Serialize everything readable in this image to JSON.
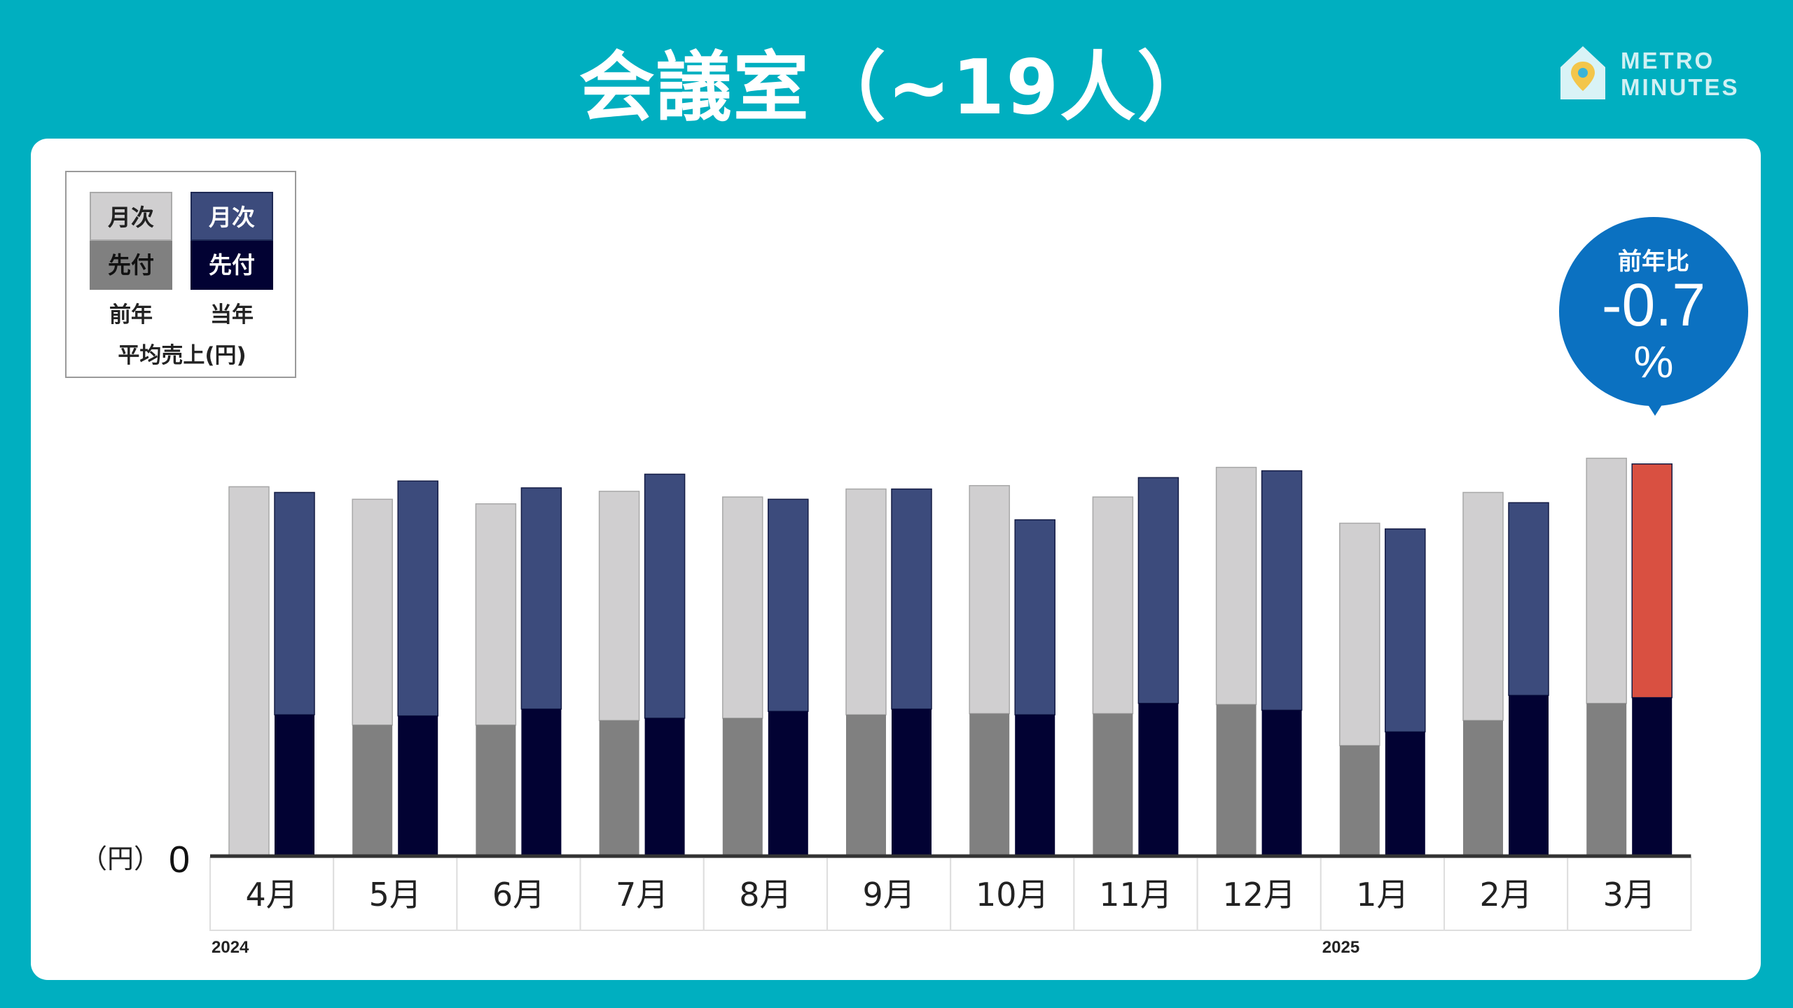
{
  "header": {
    "title": "会議室（~19人）"
  },
  "brand": {
    "line1": "METRO",
    "line2": "MINUTES"
  },
  "legend": {
    "prev_monthly": "月次",
    "prev_advance": "先付",
    "curr_monthly": "月次",
    "curr_advance": "先付",
    "prev_caption": "前年",
    "curr_caption": "当年",
    "unit_caption": "平均売上(円)"
  },
  "badge": {
    "label": "前年比",
    "value": "-0.7",
    "unit": "%"
  },
  "colors": {
    "background": "#00AFC0",
    "prev_monthly": "#D0CFD0",
    "prev_advance": "#808080",
    "curr_monthly": "#3C4B7C",
    "curr_advance": "#020233",
    "highlight_monthly": "#D95041",
    "badge": "#0B71C1"
  },
  "chart_data": {
    "type": "bar",
    "stacked": true,
    "y_unit_label": "（円）",
    "y_zero_label": "0",
    "ylim": [
      0,
      350
    ],
    "categories": [
      "4月",
      "5月",
      "6月",
      "7月",
      "8月",
      "9月",
      "10月",
      "11月",
      "12月",
      "1月",
      "2月",
      "3月"
    ],
    "year_labels": [
      {
        "text": "2024",
        "category_index": 0
      },
      {
        "text": "2025",
        "category_index": 9
      }
    ],
    "series": [
      {
        "name": "前年 先付",
        "group": "前年",
        "values": [
          0,
          115,
          115,
          119,
          121,
          124,
          125,
          125,
          133,
          97,
          119,
          134
        ]
      },
      {
        "name": "前年 月次",
        "group": "前年",
        "values": [
          324,
          198,
          194,
          201,
          194,
          198,
          200,
          190,
          208,
          195,
          200,
          215
        ]
      },
      {
        "name": "当年 先付",
        "group": "当年",
        "values": [
          124,
          123,
          129,
          121,
          127,
          129,
          124,
          134,
          128,
          109,
          141,
          139
        ]
      },
      {
        "name": "当年 月次",
        "group": "当年",
        "values": [
          195,
          206,
          194,
          214,
          186,
          193,
          171,
          198,
          210,
          178,
          169,
          205
        ]
      }
    ],
    "highlight_category_index": 11
  }
}
